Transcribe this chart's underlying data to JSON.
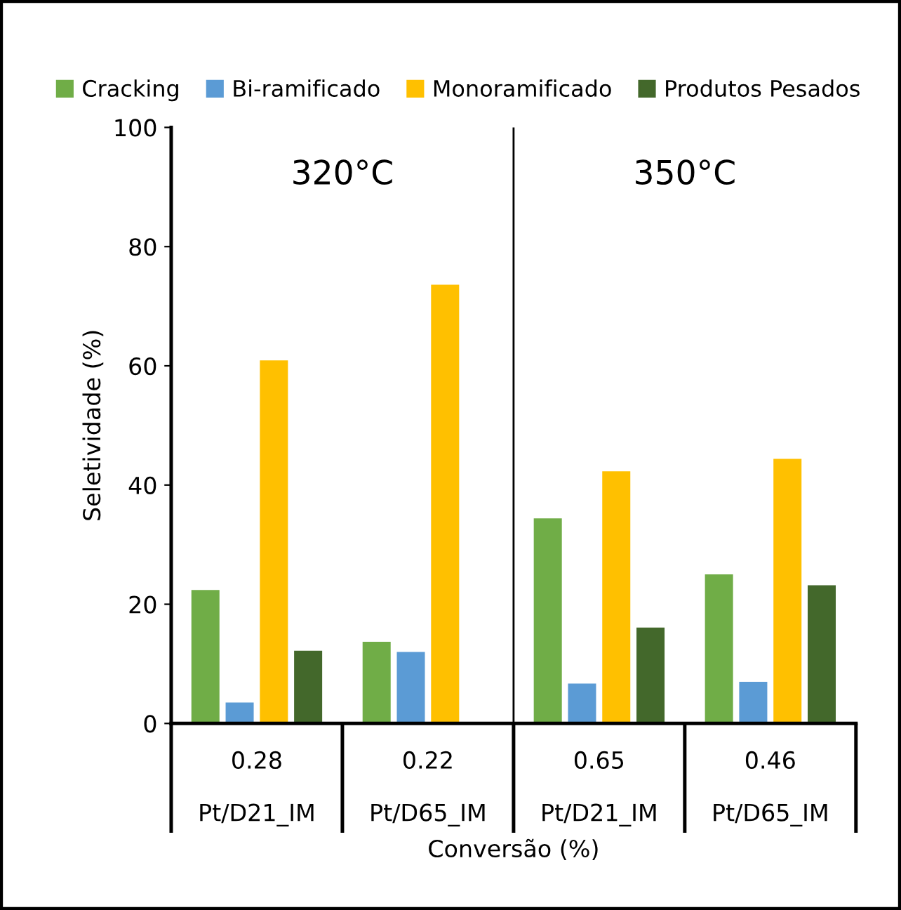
{
  "chart_data": {
    "type": "bar",
    "xlabel": "Conversão (%)",
    "ylabel": "Seletividade (%)",
    "categories": [
      "0.28\n\nPt/D21_IM",
      "0.22\n\nPt/D65_IM",
      "0.65\n\nPt/D21_IM",
      "0.46\n\nPt/D65_IM"
    ],
    "series": [
      {
        "name": "Cracking",
        "color": "#70ad47",
        "values": [
          22.4,
          13.7,
          34.4,
          25.0
        ]
      },
      {
        "name": "Bi-ramificado",
        "color": "#5b9bd5",
        "values": [
          3.5,
          12.0,
          6.7,
          7.0
        ]
      },
      {
        "name": "Monoramificado",
        "color": "#ffc000",
        "values": [
          60.9,
          73.6,
          42.3,
          44.4
        ]
      },
      {
        "name": "Produtos Pesados",
        "color": "#43682b",
        "values": [
          12.2,
          null,
          16.1,
          23.2
        ]
      }
    ],
    "ylim": [
      0,
      100
    ],
    "yticks": [
      0,
      20,
      40,
      60,
      80,
      100
    ],
    "grid": false,
    "legend": "top",
    "annotations": [
      "320°C",
      "350°C"
    ]
  }
}
